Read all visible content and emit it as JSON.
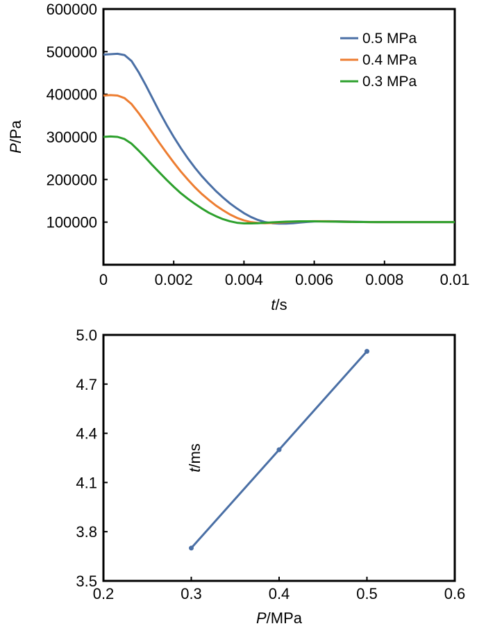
{
  "chart_data": [
    {
      "type": "line",
      "xlabel": {
        "var": "t",
        "unit": "/s"
      },
      "ylabel": {
        "var": "P",
        "unit": "/Pa"
      },
      "xlim": [
        0,
        0.01
      ],
      "ylim": [
        0,
        600000
      ],
      "x_ticks": [
        0,
        0.002,
        0.004,
        0.006,
        0.008,
        0.01
      ],
      "x_tick_labels": [
        "0",
        "0.002",
        "0.004",
        "0.006",
        "0.008",
        "0.01"
      ],
      "y_ticks": [
        100000,
        200000,
        300000,
        400000,
        500000,
        600000
      ],
      "y_tick_labels": [
        "100000",
        "200000",
        "300000",
        "400000",
        "500000",
        "600000"
      ],
      "grid": false,
      "legend_position": "top-right",
      "series": [
        {
          "name": "0.5 MPa",
          "color": "#4a6fa5",
          "x": [
            0,
            0.0002,
            0.0004,
            0.0006,
            0.0008,
            0.001,
            0.0012,
            0.0014,
            0.0016,
            0.0018,
            0.002,
            0.0022,
            0.0024,
            0.0026,
            0.0028,
            0.003,
            0.0032,
            0.0034,
            0.0036,
            0.0038,
            0.004,
            0.0042,
            0.0044,
            0.0046,
            0.0048,
            0.005,
            0.0052,
            0.0054,
            0.0056,
            0.0058,
            0.006,
            0.0062,
            0.0064,
            0.0066,
            0.0068,
            0.007,
            0.0072,
            0.0074,
            0.0076,
            0.0078,
            0.008,
            0.0085,
            0.009,
            0.0095,
            0.01
          ],
          "y": [
            493000,
            494000,
            495000,
            492000,
            478000,
            452000,
            422000,
            390000,
            358000,
            328000,
            300000,
            274000,
            250000,
            228000,
            208000,
            190000,
            173000,
            158000,
            144000,
            132000,
            121000,
            112000,
            105000,
            100000,
            97500,
            96500,
            96500,
            97500,
            99000,
            100500,
            101500,
            102000,
            102200,
            102000,
            101700,
            101200,
            100800,
            100400,
            100200,
            100000,
            100000,
            100000,
            100000,
            100000,
            100000
          ]
        },
        {
          "name": "0.4 MPa",
          "color": "#ed7d31",
          "x": [
            0,
            0.0002,
            0.0004,
            0.0006,
            0.0008,
            0.001,
            0.0012,
            0.0014,
            0.0016,
            0.0018,
            0.002,
            0.0022,
            0.0024,
            0.0026,
            0.0028,
            0.003,
            0.0032,
            0.0034,
            0.0036,
            0.0038,
            0.004,
            0.0042,
            0.0044,
            0.0046,
            0.0048,
            0.005,
            0.0052,
            0.0054,
            0.0056,
            0.0058,
            0.006,
            0.0062,
            0.0064,
            0.0066,
            0.0068,
            0.007,
            0.0072,
            0.0074,
            0.0076,
            0.0078,
            0.008,
            0.0085,
            0.009,
            0.0095,
            0.01
          ],
          "y": [
            397000,
            398000,
            397000,
            391000,
            377000,
            356000,
            333000,
            309000,
            285000,
            262000,
            240000,
            219000,
            200000,
            182000,
            166000,
            152000,
            139000,
            128000,
            118000,
            110000,
            104000,
            100000,
            98000,
            97500,
            98000,
            99000,
            100000,
            101000,
            101700,
            102000,
            102200,
            102100,
            101900,
            101500,
            101100,
            100700,
            100400,
            100200,
            100100,
            100000,
            100000,
            100000,
            100000,
            100000,
            100000
          ]
        },
        {
          "name": "0.3 MPa",
          "color": "#2ca02c",
          "x": [
            0,
            0.0002,
            0.0004,
            0.0006,
            0.0008,
            0.001,
            0.0012,
            0.0014,
            0.0016,
            0.0018,
            0.002,
            0.0022,
            0.0024,
            0.0026,
            0.0028,
            0.003,
            0.0032,
            0.0034,
            0.0036,
            0.0038,
            0.004,
            0.0042,
            0.0044,
            0.0046,
            0.0048,
            0.005,
            0.0052,
            0.0054,
            0.0056,
            0.0058,
            0.006,
            0.0062,
            0.0064,
            0.0066,
            0.0068,
            0.007,
            0.0072,
            0.0074,
            0.0076,
            0.0078,
            0.008,
            0.0085,
            0.009,
            0.0095,
            0.01
          ],
          "y": [
            300000,
            301000,
            300000,
            295000,
            284000,
            268000,
            251000,
            233000,
            216000,
            199000,
            183000,
            168000,
            155000,
            143000,
            132000,
            122000,
            114000,
            107000,
            102000,
            98500,
            97000,
            97000,
            97500,
            98500,
            99500,
            100300,
            101000,
            101500,
            101800,
            101900,
            101800,
            101600,
            101300,
            101000,
            100700,
            100500,
            100300,
            100200,
            100100,
            100000,
            100000,
            100000,
            100000,
            100000,
            100000
          ]
        }
      ]
    },
    {
      "type": "line",
      "xlabel": {
        "var": "P",
        "unit": "/MPa"
      },
      "ylabel": {
        "var": "t",
        "unit": "/ms"
      },
      "xlim": [
        0.2,
        0.6
      ],
      "ylim": [
        3.5,
        5.0
      ],
      "x_ticks": [
        0.2,
        0.3,
        0.4,
        0.5,
        0.6
      ],
      "x_tick_labels": [
        "0.2",
        "0.3",
        "0.4",
        "0.5",
        "0.6"
      ],
      "y_ticks": [
        3.5,
        3.8,
        4.1,
        4.4,
        4.7,
        5.0
      ],
      "y_tick_labels": [
        "3.5",
        "3.8",
        "4.1",
        "4.4",
        "4.7",
        "5.0"
      ],
      "grid": false,
      "series": [
        {
          "color": "#4a6fa5",
          "markers": true,
          "x": [
            0.3,
            0.4,
            0.5
          ],
          "y": [
            3.7,
            4.3,
            4.9
          ]
        }
      ]
    }
  ]
}
